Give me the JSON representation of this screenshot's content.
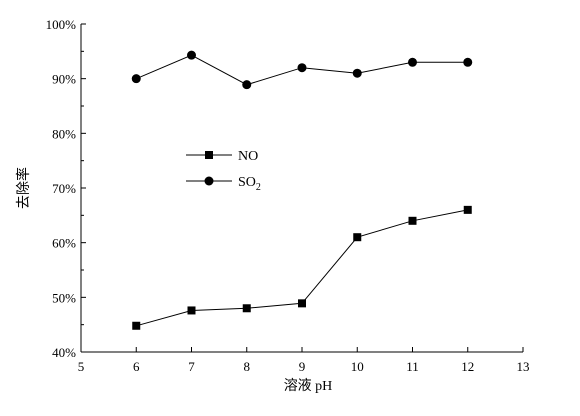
{
  "chart_data": {
    "type": "line",
    "title": "",
    "xlabel": "溶液 pH",
    "ylabel": "去除率",
    "xlim": [
      5,
      13
    ],
    "ylim": [
      40,
      100
    ],
    "x_ticks": [
      5,
      6,
      7,
      8,
      9,
      10,
      11,
      12,
      13
    ],
    "y_ticks": [
      40,
      50,
      60,
      70,
      80,
      90,
      100
    ],
    "y_tick_format": "percent",
    "grid": false,
    "legend_position": "center-left",
    "series": [
      {
        "name": "NO",
        "marker": "square",
        "color": "#000000",
        "x": [
          6,
          7,
          8,
          9,
          10,
          11,
          12
        ],
        "y": [
          44.8,
          47.6,
          48.0,
          48.9,
          61.0,
          64.0,
          66.0
        ]
      },
      {
        "name": "SO2",
        "marker": "circle",
        "color": "#000000",
        "x": [
          6,
          7,
          8,
          9,
          10,
          11,
          12
        ],
        "y": [
          90.0,
          94.3,
          88.9,
          92.0,
          91.0,
          93.0,
          93.0
        ]
      }
    ]
  }
}
